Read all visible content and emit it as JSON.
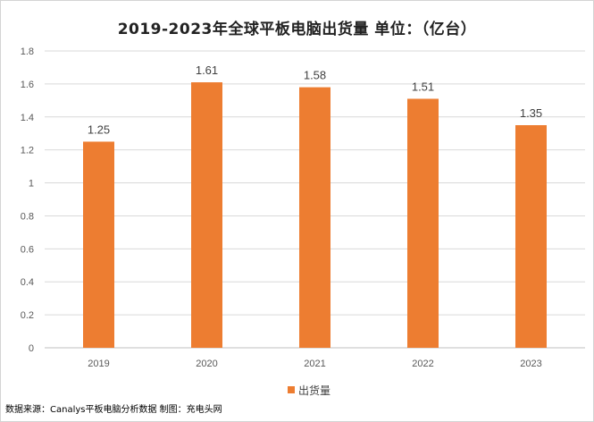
{
  "chart_data": {
    "type": "bar",
    "title": "2019-2023年全球平板电脑出货量    单位：（亿台）",
    "categories": [
      "2019",
      "2020",
      "2021",
      "2022",
      "2023"
    ],
    "series": [
      {
        "name": "出货量",
        "values": [
          1.25,
          1.61,
          1.58,
          1.51,
          1.35
        ],
        "color": "#ed7d31"
      }
    ],
    "value_labels": [
      "1.25",
      "1.61",
      "1.58",
      "1.51",
      "1.35"
    ],
    "y_ticks": [
      "0",
      "0.2",
      "0.4",
      "0.6",
      "0.8",
      "1",
      "1.2",
      "1.4",
      "1.6",
      "1.8"
    ],
    "ylim": [
      0,
      1.8
    ],
    "y_step": 0.2,
    "grid": true,
    "legend_position": "bottom",
    "xlabel": "",
    "ylabel": ""
  },
  "footer": {
    "source": "数据来源：Canalys平板电脑分析数据  制图：充电头网"
  },
  "colors": {
    "grid": "#d9d9d9",
    "axis": "#bfbfbf"
  }
}
